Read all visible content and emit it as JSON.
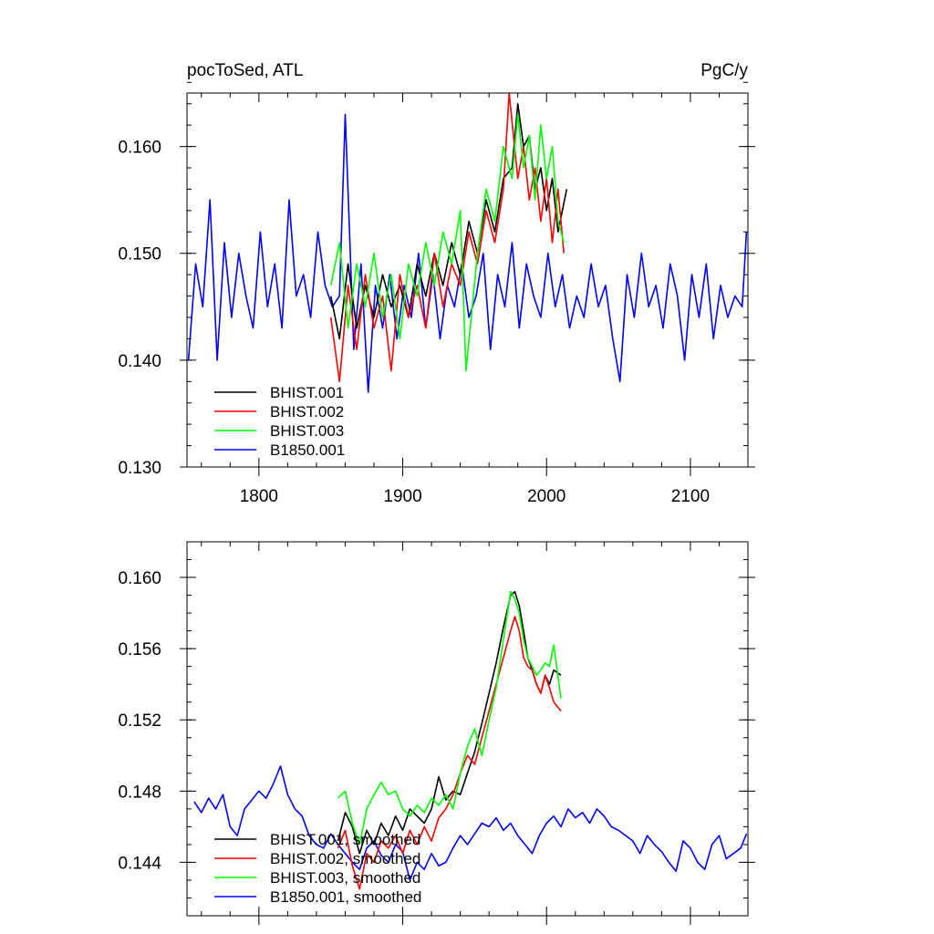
{
  "chart_data": [
    {
      "type": "line",
      "title_left": "pocToSed, ATL",
      "title_right": "PgC/y",
      "xlim": [
        1750,
        2140
      ],
      "ylim": [
        0.13,
        0.165
      ],
      "x_ticks": [
        1800,
        1900,
        2000,
        2100
      ],
      "y_ticks": [
        0.13,
        0.14,
        0.15,
        0.16
      ],
      "y_tick_labels": [
        "0.130",
        "0.140",
        "0.150",
        "0.160"
      ],
      "x_tick_labels": [
        "1800",
        "1900",
        "2000",
        "2100"
      ],
      "legend": "lower-left",
      "series": [
        {
          "name": "BHIST.001",
          "color": "#000000",
          "x": [
            1850,
            1856,
            1862,
            1868,
            1874,
            1880,
            1886,
            1892,
            1898,
            1904,
            1910,
            1916,
            1922,
            1928,
            1934,
            1940,
            1946,
            1952,
            1958,
            1964,
            1970,
            1976,
            1980,
            1984,
            1988,
            1992,
            1996,
            2000,
            2004,
            2008,
            2014
          ],
          "y": [
            0.146,
            0.142,
            0.149,
            0.143,
            0.147,
            0.144,
            0.148,
            0.145,
            0.147,
            0.144,
            0.149,
            0.146,
            0.15,
            0.147,
            0.151,
            0.148,
            0.153,
            0.15,
            0.155,
            0.152,
            0.157,
            0.158,
            0.164,
            0.16,
            0.161,
            0.156,
            0.158,
            0.154,
            0.157,
            0.152,
            0.156
          ]
        },
        {
          "name": "BHIST.002",
          "color": "#ff0000",
          "x": [
            1850,
            1856,
            1862,
            1868,
            1874,
            1880,
            1886,
            1892,
            1898,
            1904,
            1910,
            1916,
            1922,
            1928,
            1934,
            1940,
            1946,
            1952,
            1958,
            1964,
            1970,
            1974,
            1980,
            1984,
            1988,
            1992,
            1996,
            2000,
            2004,
            2008,
            2012
          ],
          "y": [
            0.144,
            0.138,
            0.147,
            0.141,
            0.148,
            0.143,
            0.146,
            0.139,
            0.148,
            0.144,
            0.147,
            0.143,
            0.15,
            0.145,
            0.149,
            0.147,
            0.152,
            0.149,
            0.154,
            0.151,
            0.156,
            0.165,
            0.157,
            0.16,
            0.155,
            0.158,
            0.153,
            0.157,
            0.151,
            0.156,
            0.15
          ]
        },
        {
          "name": "BHIST.003",
          "color": "#00ff00",
          "x": [
            1850,
            1856,
            1862,
            1868,
            1874,
            1880,
            1886,
            1892,
            1898,
            1904,
            1910,
            1916,
            1922,
            1928,
            1934,
            1940,
            1944,
            1952,
            1958,
            1964,
            1970,
            1976,
            1980,
            1984,
            1988,
            1992,
            1996,
            2000,
            2004,
            2008,
            2012
          ],
          "y": [
            0.147,
            0.151,
            0.143,
            0.149,
            0.145,
            0.15,
            0.144,
            0.148,
            0.142,
            0.149,
            0.146,
            0.151,
            0.147,
            0.152,
            0.149,
            0.154,
            0.139,
            0.15,
            0.156,
            0.153,
            0.16,
            0.157,
            0.163,
            0.158,
            0.161,
            0.155,
            0.162,
            0.157,
            0.16,
            0.153,
            0.151
          ]
        },
        {
          "name": "B1850.001",
          "color": "#0000ff",
          "x": [
            1751,
            1756,
            1761,
            1766,
            1771,
            1776,
            1781,
            1786,
            1791,
            1796,
            1801,
            1806,
            1811,
            1816,
            1821,
            1826,
            1831,
            1836,
            1841,
            1846,
            1851,
            1856,
            1860,
            1866,
            1871,
            1876,
            1881,
            1886,
            1891,
            1896,
            1901,
            1906,
            1911,
            1916,
            1921,
            1926,
            1931,
            1936,
            1941,
            1946,
            1951,
            1956,
            1961,
            1966,
            1971,
            1976,
            1981,
            1986,
            1991,
            1996,
            2001,
            2006,
            2011,
            2016,
            2021,
            2026,
            2031,
            2036,
            2041,
            2046,
            2051,
            2056,
            2061,
            2066,
            2071,
            2076,
            2081,
            2086,
            2091,
            2096,
            2101,
            2106,
            2111,
            2116,
            2121,
            2126,
            2131,
            2136,
            2139
          ],
          "y": [
            0.14,
            0.149,
            0.145,
            0.155,
            0.14,
            0.151,
            0.144,
            0.15,
            0.146,
            0.143,
            0.152,
            0.145,
            0.149,
            0.143,
            0.155,
            0.146,
            0.148,
            0.144,
            0.152,
            0.147,
            0.145,
            0.146,
            0.163,
            0.141,
            0.149,
            0.137,
            0.147,
            0.143,
            0.148,
            0.142,
            0.147,
            0.144,
            0.15,
            0.143,
            0.148,
            0.142,
            0.147,
            0.145,
            0.149,
            0.144,
            0.146,
            0.15,
            0.141,
            0.148,
            0.145,
            0.151,
            0.143,
            0.149,
            0.146,
            0.144,
            0.15,
            0.145,
            0.148,
            0.143,
            0.146,
            0.144,
            0.149,
            0.145,
            0.147,
            0.142,
            0.138,
            0.148,
            0.144,
            0.15,
            0.145,
            0.147,
            0.143,
            0.149,
            0.146,
            0.14,
            0.148,
            0.144,
            0.149,
            0.142,
            0.147,
            0.144,
            0.146,
            0.145,
            0.152
          ]
        }
      ]
    },
    {
      "type": "line",
      "xlim": [
        1750,
        2140
      ],
      "ylim": [
        0.141,
        0.162
      ],
      "x_ticks": [
        1800,
        1900,
        2000,
        2100
      ],
      "y_ticks": [
        0.144,
        0.148,
        0.152,
        0.156,
        0.16
      ],
      "y_tick_labels": [
        "0.144",
        "0.148",
        "0.152",
        "0.156",
        "0.160"
      ],
      "legend": "lower-left",
      "series": [
        {
          "name": "BHIST.001, smoothed",
          "color": "#000000",
          "x": [
            1855,
            1860,
            1865,
            1870,
            1875,
            1880,
            1885,
            1890,
            1895,
            1900,
            1905,
            1910,
            1915,
            1920,
            1925,
            1930,
            1935,
            1940,
            1945,
            1950,
            1955,
            1960,
            1965,
            1970,
            1975,
            1978,
            1981,
            1984,
            1987,
            1990,
            1993,
            1996,
            1999,
            2002,
            2005,
            2010
          ],
          "y": [
            0.1452,
            0.1468,
            0.146,
            0.1445,
            0.1458,
            0.145,
            0.1462,
            0.1455,
            0.1466,
            0.1458,
            0.147,
            0.1466,
            0.1462,
            0.147,
            0.1488,
            0.1475,
            0.148,
            0.1478,
            0.149,
            0.1502,
            0.1518,
            0.1535,
            0.1552,
            0.1572,
            0.159,
            0.1592,
            0.1584,
            0.157,
            0.1555,
            0.1548,
            0.154,
            0.1535,
            0.1545,
            0.154,
            0.1548,
            0.1545
          ]
        },
        {
          "name": "BHIST.002, smoothed",
          "color": "#ff0000",
          "x": [
            1855,
            1860,
            1865,
            1870,
            1875,
            1880,
            1885,
            1890,
            1895,
            1900,
            1905,
            1910,
            1915,
            1920,
            1925,
            1930,
            1935,
            1940,
            1945,
            1950,
            1955,
            1960,
            1965,
            1970,
            1975,
            1978,
            1981,
            1984,
            1987,
            1990,
            1993,
            1996,
            1999,
            2002,
            2005,
            2010
          ],
          "y": [
            0.1448,
            0.1458,
            0.1438,
            0.1425,
            0.1445,
            0.144,
            0.1452,
            0.1448,
            0.1455,
            0.1445,
            0.1458,
            0.145,
            0.146,
            0.1452,
            0.1465,
            0.147,
            0.1478,
            0.149,
            0.15,
            0.1495,
            0.151,
            0.1525,
            0.154,
            0.1555,
            0.157,
            0.1578,
            0.157,
            0.1555,
            0.155,
            0.1548,
            0.154,
            0.1535,
            0.1545,
            0.1538,
            0.153,
            0.1525
          ]
        },
        {
          "name": "BHIST.003, smoothed",
          "color": "#00ff00",
          "x": [
            1855,
            1860,
            1865,
            1870,
            1875,
            1880,
            1885,
            1890,
            1895,
            1900,
            1905,
            1910,
            1915,
            1920,
            1925,
            1930,
            1935,
            1940,
            1945,
            1950,
            1955,
            1960,
            1965,
            1970,
            1975,
            1978,
            1981,
            1984,
            1987,
            1990,
            1993,
            1996,
            1999,
            2002,
            2005,
            2010
          ],
          "y": [
            0.1476,
            0.148,
            0.1462,
            0.145,
            0.147,
            0.1478,
            0.1485,
            0.1478,
            0.148,
            0.147,
            0.1466,
            0.1472,
            0.1468,
            0.1476,
            0.1472,
            0.1478,
            0.147,
            0.149,
            0.1505,
            0.1515,
            0.15,
            0.152,
            0.1538,
            0.1565,
            0.1592,
            0.1588,
            0.158,
            0.1565,
            0.1555,
            0.155,
            0.1545,
            0.1548,
            0.1552,
            0.155,
            0.1562,
            0.1532
          ]
        },
        {
          "name": "B1850.001, smoothed",
          "color": "#0000ff",
          "x": [
            1755,
            1760,
            1765,
            1770,
            1775,
            1780,
            1785,
            1790,
            1795,
            1800,
            1805,
            1810,
            1815,
            1820,
            1825,
            1830,
            1835,
            1840,
            1845,
            1850,
            1855,
            1860,
            1865,
            1870,
            1875,
            1880,
            1885,
            1890,
            1895,
            1900,
            1905,
            1910,
            1915,
            1920,
            1925,
            1930,
            1935,
            1940,
            1945,
            1950,
            1955,
            1960,
            1965,
            1970,
            1975,
            1980,
            1985,
            1990,
            1995,
            2000,
            2005,
            2010,
            2015,
            2020,
            2025,
            2030,
            2035,
            2040,
            2045,
            2050,
            2055,
            2060,
            2065,
            2070,
            2075,
            2080,
            2085,
            2090,
            2095,
            2100,
            2105,
            2110,
            2115,
            2120,
            2125,
            2130,
            2135,
            2139
          ],
          "y": [
            0.1474,
            0.1468,
            0.1476,
            0.147,
            0.1478,
            0.146,
            0.1455,
            0.147,
            0.1475,
            0.148,
            0.1476,
            0.1484,
            0.1494,
            0.1478,
            0.147,
            0.1466,
            0.1455,
            0.145,
            0.1448,
            0.1456,
            0.145,
            0.1445,
            0.144,
            0.1436,
            0.1448,
            0.1452,
            0.1444,
            0.144,
            0.145,
            0.1446,
            0.143,
            0.144,
            0.1436,
            0.1445,
            0.1438,
            0.144,
            0.1448,
            0.1455,
            0.145,
            0.1456,
            0.1462,
            0.146,
            0.1465,
            0.1458,
            0.1462,
            0.1455,
            0.145,
            0.1445,
            0.1455,
            0.1462,
            0.1466,
            0.146,
            0.147,
            0.1465,
            0.1468,
            0.1462,
            0.147,
            0.1466,
            0.146,
            0.1458,
            0.1455,
            0.1452,
            0.1445,
            0.1455,
            0.145,
            0.1446,
            0.144,
            0.1435,
            0.1452,
            0.1448,
            0.144,
            0.1436,
            0.145,
            0.1455,
            0.1442,
            0.1445,
            0.1448,
            0.1456
          ]
        }
      ]
    }
  ]
}
